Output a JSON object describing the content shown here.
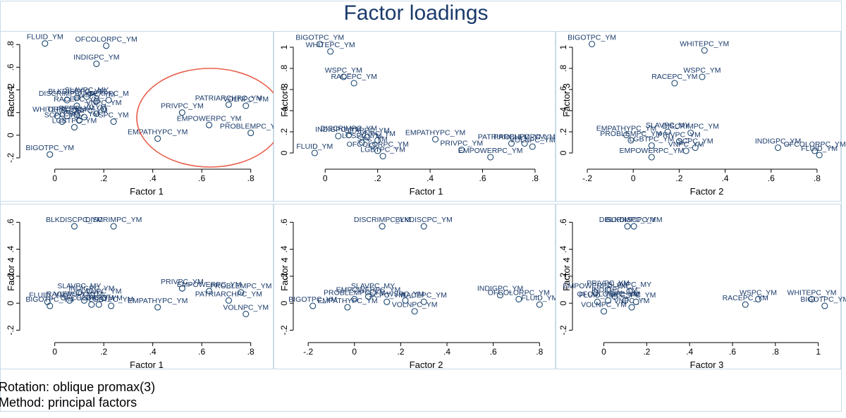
{
  "title": "Factor loadings",
  "notes": [
    "Rotation: oblique promax(3)",
    "Method: principal factors"
  ],
  "colors": {
    "marker": "#1a476f",
    "text": "#1a3a6b",
    "border": "#c9dbe8",
    "highlight": "#e8604c"
  },
  "chart_data": [
    {
      "type": "scatter",
      "xlabel": "Factor 1",
      "ylabel": "Factor 2",
      "grid": false,
      "xlim": [
        -0.12,
        0.87
      ],
      "ylim": [
        -0.25,
        0.87
      ],
      "xticks": [
        {
          "v": 0,
          "t": "0"
        },
        {
          "v": 0.2,
          "t": ".2"
        },
        {
          "v": 0.4,
          "t": ".4"
        },
        {
          "v": 0.6,
          "t": ".6"
        },
        {
          "v": 0.8,
          "t": ".8"
        }
      ],
      "yticks": [
        {
          "v": -0.2,
          "t": "-.2"
        },
        {
          "v": 0,
          "t": "0"
        },
        {
          "v": 0.2,
          "t": ".2"
        },
        {
          "v": 0.4,
          "t": ".4"
        },
        {
          "v": 0.6,
          "t": ".6"
        },
        {
          "v": 0.8,
          "t": ".8"
        }
      ],
      "annotation": "circle around the items with high Factor 1 loadings",
      "points": [
        {
          "label": "FLUID_YM",
          "x": -0.04,
          "y": 0.81
        },
        {
          "label": "OFCOLORPC_YM",
          "x": 0.21,
          "y": 0.79
        },
        {
          "label": "INDIGPC_YM",
          "x": 0.17,
          "y": 0.63
        },
        {
          "label": "DISCRIMPC_YM",
          "x": 0.05,
          "y": 0.31
        },
        {
          "label": "BLKDISCPC_YM",
          "x": 0.09,
          "y": 0.33
        },
        {
          "label": "SLAVPC_MY",
          "x": 0.13,
          "y": 0.34
        },
        {
          "label": "WSPC_YM",
          "x": 0.17,
          "y": 0.3
        },
        {
          "label": "SEXPPC_M",
          "x": 0.22,
          "y": 0.31
        },
        {
          "label": "RACEPC_YM",
          "x": 0.09,
          "y": 0.26
        },
        {
          "label": "VNPC_YM",
          "x": 0.2,
          "y": 0.23
        },
        {
          "label": "WHITEPC_YM",
          "x": 0.01,
          "y": 0.17
        },
        {
          "label": "ORIPC_YM",
          "x": 0.05,
          "y": 0.17
        },
        {
          "label": "REPC_YM",
          "x": 0.09,
          "y": 0.18
        },
        {
          "label": "SRQRPC_YM",
          "x": 0.12,
          "y": 0.16
        },
        {
          "label": "CLYM",
          "x": 0.17,
          "y": 0.19
        },
        {
          "label": "SCPC_YM",
          "x": 0.03,
          "y": 0.12
        },
        {
          "label": "LCSPC_YM",
          "x": 0.1,
          "y": 0.13
        },
        {
          "label": "SPC_YM",
          "x": 0.24,
          "y": 0.12
        },
        {
          "label": "LGBTPC_YM",
          "x": 0.08,
          "y": 0.07
        },
        {
          "label": "BIGOTPC_YM",
          "x": -0.02,
          "y": -0.17
        },
        {
          "label": "PRIVPC_YM",
          "x": 0.52,
          "y": 0.2
        },
        {
          "label": "PATRIARCHPC_YM",
          "x": 0.71,
          "y": 0.27
        },
        {
          "label": "VOLNPC_YM",
          "x": 0.78,
          "y": 0.26
        },
        {
          "label": "EMPOWERPC_YM",
          "x": 0.63,
          "y": 0.09
        },
        {
          "label": "PROBLEMPC_YM",
          "x": 0.8,
          "y": 0.02
        },
        {
          "label": "EMPATHYPC_YM",
          "x": 0.42,
          "y": -0.03
        }
      ]
    },
    {
      "type": "scatter",
      "xlabel": "Factor 1",
      "ylabel": "Factor 3",
      "grid": false,
      "xlim": [
        -0.1,
        0.87
      ],
      "ylim": [
        -0.1,
        1.1
      ],
      "xticks": [
        {
          "v": 0,
          "t": "0"
        },
        {
          "v": 0.2,
          "t": ".2"
        },
        {
          "v": 0.4,
          "t": ".4"
        },
        {
          "v": 0.6,
          "t": ".6"
        },
        {
          "v": 0.8,
          "t": ".8"
        }
      ],
      "yticks": [
        {
          "v": 0,
          "t": "0"
        },
        {
          "v": 0.2,
          "t": ".2"
        },
        {
          "v": 0.4,
          "t": ".4"
        },
        {
          "v": 0.6,
          "t": ".6"
        },
        {
          "v": 0.8,
          "t": ".8"
        },
        {
          "v": 1,
          "t": "1"
        }
      ],
      "points": [
        {
          "label": "BIGOTPC_YM",
          "x": -0.02,
          "y": 1.03
        },
        {
          "label": "WHITEPC_YM",
          "x": 0.02,
          "y": 0.96
        },
        {
          "label": "WSPC_YM",
          "x": 0.07,
          "y": 0.72
        },
        {
          "label": "RACEPC_YM",
          "x": 0.11,
          "y": 0.66
        },
        {
          "label": "INDIGPC_YM",
          "x": 0.05,
          "y": 0.16
        },
        {
          "label": "DISCRIMPC_YM",
          "x": 0.09,
          "y": 0.17
        },
        {
          "label": "SEXPPC_YM",
          "x": 0.16,
          "y": 0.15
        },
        {
          "label": "VNPC_YM",
          "x": 0.2,
          "y": 0.12
        },
        {
          "label": "LCSPC_YM",
          "x": 0.14,
          "y": 0.1
        },
        {
          "label": "SPC_YM",
          "x": 0.18,
          "y": 0.07
        },
        {
          "label": "OFCOLORPC_YM",
          "x": 0.2,
          "y": 0.02
        },
        {
          "label": "LGBTPC_YM",
          "x": 0.22,
          "y": -0.03
        },
        {
          "label": "FLUID_YM",
          "x": -0.04,
          "y": 0.0
        },
        {
          "label": "EMPATHYPC_YM",
          "x": 0.42,
          "y": 0.13
        },
        {
          "label": "PRIVPC_YM",
          "x": 0.52,
          "y": 0.03
        },
        {
          "label": "EMPOWERPC_YM",
          "x": 0.63,
          "y": -0.04
        },
        {
          "label": "PATRIARCHPC_YM",
          "x": 0.71,
          "y": 0.09
        },
        {
          "label": "PROBLEMPC_YM",
          "x": 0.76,
          "y": 0.09
        },
        {
          "label": "VOLNPC_YM",
          "x": 0.79,
          "y": 0.06
        }
      ]
    },
    {
      "type": "scatter",
      "xlabel": "Factor 2",
      "ylabel": "Factor 3",
      "grid": false,
      "xlim": [
        -0.24,
        0.88
      ],
      "ylim": [
        -0.1,
        1.1
      ],
      "xticks": [
        {
          "v": -0.2,
          "t": "-.2"
        },
        {
          "v": 0,
          "t": "0"
        },
        {
          "v": 0.2,
          "t": ".2"
        },
        {
          "v": 0.4,
          "t": ".4"
        },
        {
          "v": 0.6,
          "t": ".6"
        },
        {
          "v": 0.8,
          "t": ".8"
        }
      ],
      "yticks": [
        {
          "v": 0,
          "t": "0"
        },
        {
          "v": 0.2,
          "t": ".2"
        },
        {
          "v": 0.4,
          "t": ".4"
        },
        {
          "v": 0.6,
          "t": ".6"
        },
        {
          "v": 0.8,
          "t": ".8"
        },
        {
          "v": 1,
          "t": "1"
        }
      ],
      "points": [
        {
          "label": "BIGOTPC_YM",
          "x": -0.18,
          "y": 1.03
        },
        {
          "label": "WHITEPC_YM",
          "x": 0.31,
          "y": 0.97
        },
        {
          "label": "WSPC_YM",
          "x": 0.3,
          "y": 0.72
        },
        {
          "label": "RACEPC_YM",
          "x": 0.18,
          "y": 0.66
        },
        {
          "label": "EMPATHYPC_YM",
          "x": -0.03,
          "y": 0.17
        },
        {
          "label": "SLAVPC_MY",
          "x": 0.15,
          "y": 0.2
        },
        {
          "label": "DISCRIMPC_YM",
          "x": 0.25,
          "y": 0.19
        },
        {
          "label": "PROBLEMPC_YM",
          "x": -0.01,
          "y": 0.12
        },
        {
          "label": "LGBTPC_YM",
          "x": 0.08,
          "y": 0.07
        },
        {
          "label": "PRIVPC_YM",
          "x": 0.2,
          "y": 0.11
        },
        {
          "label": "SCPC_YM",
          "x": 0.27,
          "y": 0.05
        },
        {
          "label": "EMPOWERPC_YM",
          "x": 0.08,
          "y": -0.04
        },
        {
          "label": "VNPC_YM",
          "x": 0.23,
          "y": 0.02
        },
        {
          "label": "INDIGPC_YM",
          "x": 0.63,
          "y": 0.05
        },
        {
          "label": "OFCOLORPC_YM",
          "x": 0.79,
          "y": 0.02
        },
        {
          "label": "FLUID_YM",
          "x": 0.81,
          "y": -0.02
        }
      ]
    },
    {
      "type": "scatter",
      "xlabel": "Factor 1",
      "ylabel": "Factor 4",
      "grid": false,
      "xlim": [
        -0.12,
        0.87
      ],
      "ylim": [
        -0.25,
        0.68
      ],
      "xticks": [
        {
          "v": 0,
          "t": "0"
        },
        {
          "v": 0.2,
          "t": ".2"
        },
        {
          "v": 0.4,
          "t": ".4"
        },
        {
          "v": 0.6,
          "t": ".6"
        },
        {
          "v": 0.8,
          "t": ".8"
        }
      ],
      "yticks": [
        {
          "v": -0.2,
          "t": "-.2"
        },
        {
          "v": 0,
          "t": "0"
        },
        {
          "v": 0.2,
          "t": ".2"
        },
        {
          "v": 0.4,
          "t": ".4"
        },
        {
          "v": 0.6,
          "t": ".6"
        }
      ],
      "points": [
        {
          "label": "BLKDISCPC_YM",
          "x": 0.08,
          "y": 0.57
        },
        {
          "label": "DISCRIMPC_YM",
          "x": 0.24,
          "y": 0.57
        },
        {
          "label": "SLAVPC_MY",
          "x": 0.1,
          "y": 0.08
        },
        {
          "label": "INDIGPC_YM",
          "x": 0.15,
          "y": 0.06
        },
        {
          "label": "VNPC_YM",
          "x": 0.2,
          "y": 0.04
        },
        {
          "label": "WSPC_YM",
          "x": 0.12,
          "y": 0.02
        },
        {
          "label": "RACEPC_YM",
          "x": 0.06,
          "y": 0.02
        },
        {
          "label": "SPC_YM",
          "x": 0.18,
          "y": -0.01
        },
        {
          "label": "LGBTPC_YM",
          "x": 0.23,
          "y": -0.02
        },
        {
          "label": "OFCOLORPC_YM",
          "x": 0.15,
          "y": -0.01
        },
        {
          "label": "FLUID_YM",
          "x": -0.03,
          "y": 0.01
        },
        {
          "label": "BIGOTPC_YM",
          "x": -0.02,
          "y": -0.02
        },
        {
          "label": "PRIVPC_YM",
          "x": 0.52,
          "y": 0.11
        },
        {
          "label": "EMPOWERPC_YM",
          "x": 0.63,
          "y": 0.09
        },
        {
          "label": "PROBLEMPC_YM",
          "x": 0.76,
          "y": 0.08
        },
        {
          "label": "PATRIARCHPC_YM",
          "x": 0.71,
          "y": 0.02
        },
        {
          "label": "EMPATHYPC_YM",
          "x": 0.42,
          "y": -0.03
        },
        {
          "label": "VOLNPC_YM",
          "x": 0.78,
          "y": -0.08
        }
      ]
    },
    {
      "type": "scatter",
      "xlabel": "Factor 2",
      "ylabel": "Factor 4",
      "grid": false,
      "xlim": [
        -0.24,
        0.86
      ],
      "ylim": [
        -0.25,
        0.68
      ],
      "xticks": [
        {
          "v": -0.2,
          "t": "-.2"
        },
        {
          "v": 0,
          "t": "0"
        },
        {
          "v": 0.2,
          "t": ".2"
        },
        {
          "v": 0.4,
          "t": ".4"
        },
        {
          "v": 0.6,
          "t": ".6"
        },
        {
          "v": 0.8,
          "t": ".8"
        }
      ],
      "yticks": [
        {
          "v": -0.2,
          "t": "-.2"
        },
        {
          "v": 0,
          "t": "0"
        },
        {
          "v": 0.2,
          "t": ".2"
        },
        {
          "v": 0.4,
          "t": ".4"
        },
        {
          "v": 0.6,
          "t": ".6"
        }
      ],
      "points": [
        {
          "label": "DISCRIMPC_YM",
          "x": 0.12,
          "y": 0.57
        },
        {
          "label": "BLKDISCPC_YM",
          "x": 0.3,
          "y": 0.57
        },
        {
          "label": "SLAVPC_MY",
          "x": 0.08,
          "y": 0.08
        },
        {
          "label": "EMPOWERPC_YM",
          "x": 0.06,
          "y": 0.05
        },
        {
          "label": "PROBLEMPC_YM",
          "x": 0.0,
          "y": 0.03
        },
        {
          "label": "SCPC_YM",
          "x": 0.14,
          "y": 0.01
        },
        {
          "label": "WSPC_YM",
          "x": 0.22,
          "y": 0.02
        },
        {
          "label": "RACEPC_YM",
          "x": 0.3,
          "y": 0.01
        },
        {
          "label": "BIGOTPC_YM",
          "x": -0.18,
          "y": -0.02
        },
        {
          "label": "EMPATHYPC_YM",
          "x": -0.03,
          "y": -0.03
        },
        {
          "label": "VOLNPC_YM",
          "x": 0.26,
          "y": -0.06
        },
        {
          "label": "INDIGPC_YM",
          "x": 0.63,
          "y": 0.06
        },
        {
          "label": "OFCOLORPC_YM",
          "x": 0.71,
          "y": 0.03
        },
        {
          "label": "FLUID_YM",
          "x": 0.8,
          "y": -0.01
        }
      ]
    },
    {
      "type": "scatter",
      "xlabel": "Factor 3",
      "ylabel": "Factor 4",
      "grid": false,
      "xlim": [
        -0.12,
        1.08
      ],
      "ylim": [
        -0.25,
        0.68
      ],
      "xticks": [
        {
          "v": 0,
          "t": "0"
        },
        {
          "v": 0.2,
          "t": ".2"
        },
        {
          "v": 0.4,
          "t": ".4"
        },
        {
          "v": 0.6,
          "t": ".6"
        },
        {
          "v": 0.8,
          "t": ".8"
        },
        {
          "v": 1,
          "t": "1"
        }
      ],
      "yticks": [
        {
          "v": -0.2,
          "t": "-.2"
        },
        {
          "v": 0,
          "t": "0"
        },
        {
          "v": 0.2,
          "t": ".2"
        },
        {
          "v": 0.4,
          "t": ".4"
        },
        {
          "v": 0.6,
          "t": ".6"
        }
      ],
      "points": [
        {
          "label": "DISCRIMPC_YM",
          "x": 0.11,
          "y": 0.57
        },
        {
          "label": "BLKDISCPC_YM",
          "x": 0.14,
          "y": 0.57
        },
        {
          "label": "SLAVPC_MY",
          "x": 0.12,
          "y": 0.09
        },
        {
          "label": "PRIVPC_YM",
          "x": 0.02,
          "y": 0.1
        },
        {
          "label": "EMPOWERPC_YM",
          "x": -0.04,
          "y": 0.08
        },
        {
          "label": "INDIGPC_YM",
          "x": 0.05,
          "y": 0.05
        },
        {
          "label": "OFCOLORPC_YM",
          "x": 0.02,
          "y": 0.02
        },
        {
          "label": "SPC_YM",
          "x": 0.1,
          "y": 0.02
        },
        {
          "label": "LCSPC_YM",
          "x": 0.15,
          "y": 0.01
        },
        {
          "label": "FLUID_YM",
          "x": -0.03,
          "y": 0.01
        },
        {
          "label": "VOLNPC_YM",
          "x": 0.0,
          "y": -0.06
        },
        {
          "label": "VNPC_YM",
          "x": 0.13,
          "y": -0.03
        },
        {
          "label": "WSPC_YM",
          "x": 0.72,
          "y": 0.03
        },
        {
          "label": "RACEPC_YM",
          "x": 0.66,
          "y": -0.01
        },
        {
          "label": "WHITEPC_YM",
          "x": 0.97,
          "y": 0.03
        },
        {
          "label": "BIGOTPC_YM",
          "x": 1.03,
          "y": -0.02
        }
      ]
    }
  ]
}
